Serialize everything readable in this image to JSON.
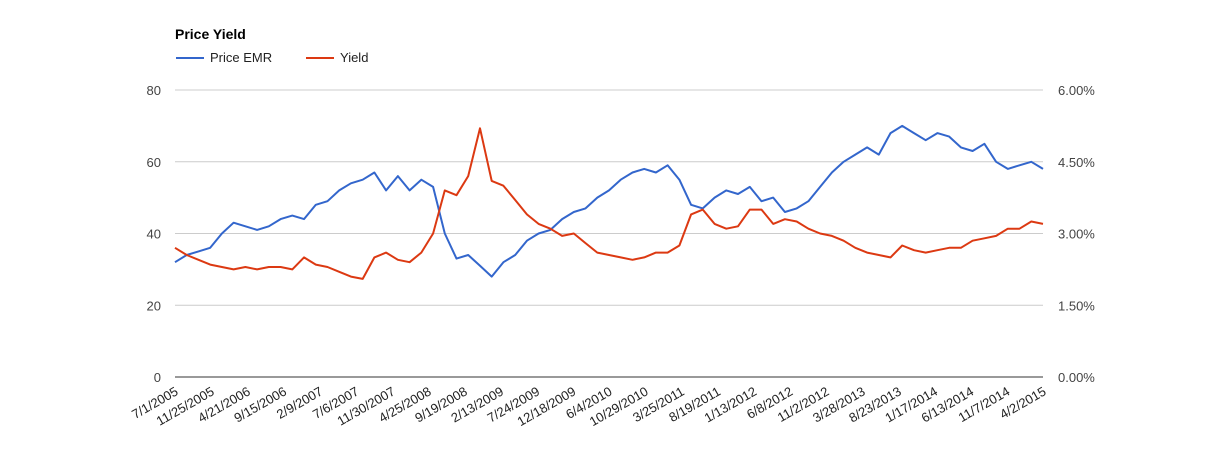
{
  "chart_data": {
    "type": "line",
    "title": "Price Yield",
    "legend": {
      "position": "top-left"
    },
    "grid": true,
    "x_ticks": [
      "7/1/2005",
      "11/25/2005",
      "4/21/2006",
      "9/15/2006",
      "2/9/2007",
      "7/6/2007",
      "11/30/2007",
      "4/25/2008",
      "9/19/2008",
      "2/13/2009",
      "7/24/2009",
      "12/18/2009",
      "6/4/2010",
      "10/29/2010",
      "3/25/2011",
      "8/19/2011",
      "1/13/2012",
      "6/8/2012",
      "11/2/2012",
      "3/28/2013",
      "8/23/2013",
      "1/17/2014",
      "6/13/2014",
      "11/7/2014",
      "4/2/2015"
    ],
    "y_left": {
      "min": 0,
      "max": 80,
      "ticks": [
        "0",
        "20",
        "40",
        "60",
        "80"
      ],
      "tick_values": [
        0,
        20,
        40,
        60,
        80
      ]
    },
    "y_right": {
      "min": 0,
      "max": 6,
      "ticks": [
        "0.00%",
        "1.50%",
        "3.00%",
        "4.50%",
        "6.00%"
      ],
      "tick_values": [
        0,
        1.5,
        3,
        4.5,
        6
      ]
    },
    "series": [
      {
        "name": "Price EMR",
        "axis": "left",
        "color": "#3366cc",
        "values": [
          32,
          34,
          35,
          36,
          40,
          43,
          42,
          41,
          42,
          44,
          45,
          44,
          48,
          49,
          52,
          54,
          55,
          57,
          52,
          56,
          52,
          55,
          53,
          40,
          33,
          34,
          31,
          28,
          32,
          34,
          38,
          40,
          41,
          44,
          46,
          47,
          50,
          52,
          55,
          57,
          58,
          57,
          59,
          55,
          48,
          47,
          50,
          52,
          51,
          53,
          49,
          50,
          46,
          47,
          49,
          53,
          57,
          60,
          62,
          64,
          62,
          68,
          70,
          68,
          66,
          68,
          67,
          64,
          63,
          65,
          60,
          58,
          59,
          60,
          58
        ]
      },
      {
        "name": "Yield",
        "axis": "right",
        "color": "#dc3912",
        "values": [
          2.7,
          2.55,
          2.45,
          2.35,
          2.3,
          2.25,
          2.3,
          2.25,
          2.3,
          2.3,
          2.25,
          2.5,
          2.35,
          2.3,
          2.2,
          2.1,
          2.05,
          2.5,
          2.6,
          2.45,
          2.4,
          2.6,
          3.0,
          3.9,
          3.8,
          4.2,
          5.2,
          4.1,
          4.0,
          3.7,
          3.4,
          3.2,
          3.1,
          2.95,
          3.0,
          2.8,
          2.6,
          2.55,
          2.5,
          2.45,
          2.5,
          2.6,
          2.6,
          2.75,
          3.4,
          3.5,
          3.2,
          3.1,
          3.15,
          3.5,
          3.5,
          3.2,
          3.3,
          3.25,
          3.1,
          3.0,
          2.95,
          2.85,
          2.7,
          2.6,
          2.55,
          2.5,
          2.75,
          2.65,
          2.6,
          2.65,
          2.7,
          2.7,
          2.85,
          2.9,
          2.95,
          3.1,
          3.1,
          3.25,
          3.2
        ]
      }
    ]
  }
}
